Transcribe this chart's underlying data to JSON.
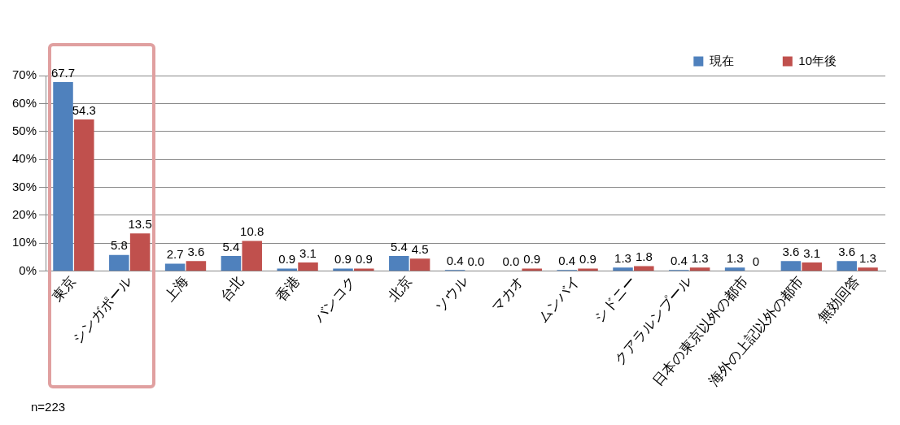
{
  "chart_data": {
    "type": "bar",
    "categories": [
      "東京",
      "シンガポール",
      "上海",
      "台北",
      "香港",
      "バンコク",
      "北京",
      "ソウル",
      "マカオ",
      "ムンバイ",
      "シドニー",
      "クアラルンプール",
      "日本の東京以外の都市",
      "海外の上記以外の都市",
      "無効回答"
    ],
    "series": [
      {
        "name": "現在",
        "color": "#4f81bd",
        "values": [
          67.7,
          5.8,
          2.7,
          5.4,
          0.9,
          0.9,
          5.4,
          0.4,
          0.0,
          0.4,
          1.3,
          0.4,
          1.3,
          3.6,
          3.6
        ],
        "value_labels": [
          "67.7",
          "5.8",
          "2.7",
          "5.4",
          "0.9",
          "0.9",
          "5.4",
          "0.4",
          "0.0",
          "0.4",
          "1.3",
          "0.4",
          "1.3",
          "3.6",
          "3.6"
        ]
      },
      {
        "name": "10年後",
        "color": "#c0504d",
        "values": [
          54.3,
          13.5,
          3.6,
          10.8,
          3.1,
          0.9,
          4.5,
          0.0,
          0.9,
          0.9,
          1.8,
          1.3,
          0,
          3.1,
          1.3
        ],
        "value_labels": [
          "54.3",
          "13.5",
          "3.6",
          "10.8",
          "3.1",
          "0.9",
          "4.5",
          "0.0",
          "0.9",
          "0.9",
          "1.8",
          "1.3",
          "0",
          "3.1",
          "1.3"
        ]
      }
    ],
    "ylim": [
      0,
      70
    ],
    "yticks": [
      {
        "value": 0,
        "label": "0%"
      },
      {
        "value": 10,
        "label": "10%"
      },
      {
        "value": 20,
        "label": "20%"
      },
      {
        "value": 30,
        "label": "30%"
      },
      {
        "value": 40,
        "label": "40%"
      },
      {
        "value": 50,
        "label": "50%"
      },
      {
        "value": 60,
        "label": "60%"
      },
      {
        "value": 70,
        "label": "70%"
      }
    ],
    "grid": "y",
    "legend": "top right",
    "annotations": [
      "n=223"
    ]
  }
}
